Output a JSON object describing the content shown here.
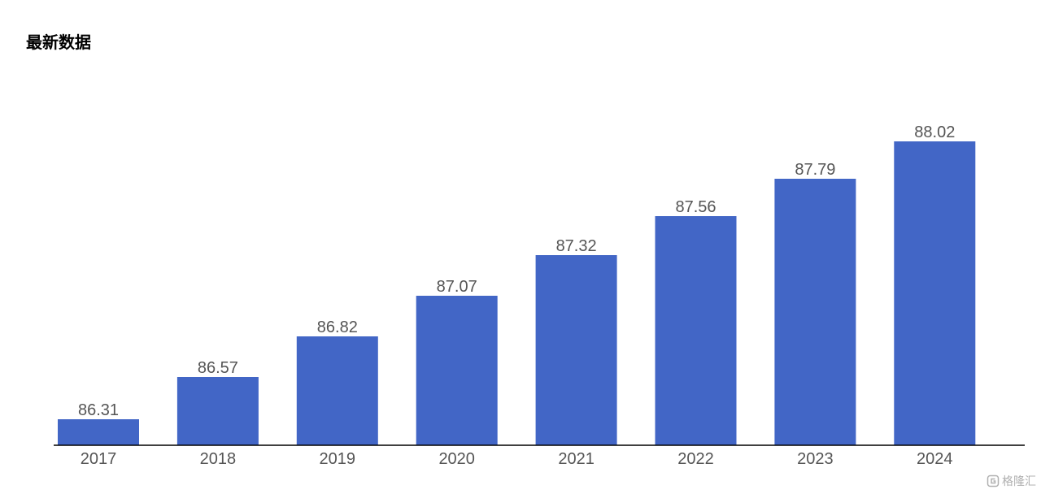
{
  "page": {
    "title": "最新数据"
  },
  "chart_data": {
    "type": "bar",
    "categories": [
      "2017",
      "2018",
      "2019",
      "2020",
      "2021",
      "2022",
      "2023",
      "2024"
    ],
    "values": [
      86.31,
      86.57,
      86.82,
      87.07,
      87.32,
      87.56,
      87.79,
      88.02
    ],
    "title": "",
    "xlabel": "",
    "ylabel": "",
    "ylim": [
      86.15,
      88.15
    ],
    "data_labels": true,
    "grid": false,
    "legend": "none",
    "bar_color": "#4266c6"
  },
  "colors": {
    "bar": "#4266c6",
    "axis": "#000000",
    "label_text": "#555555"
  },
  "watermark": {
    "icon": "gelonghui-logo-icon",
    "text": "格隆汇"
  }
}
